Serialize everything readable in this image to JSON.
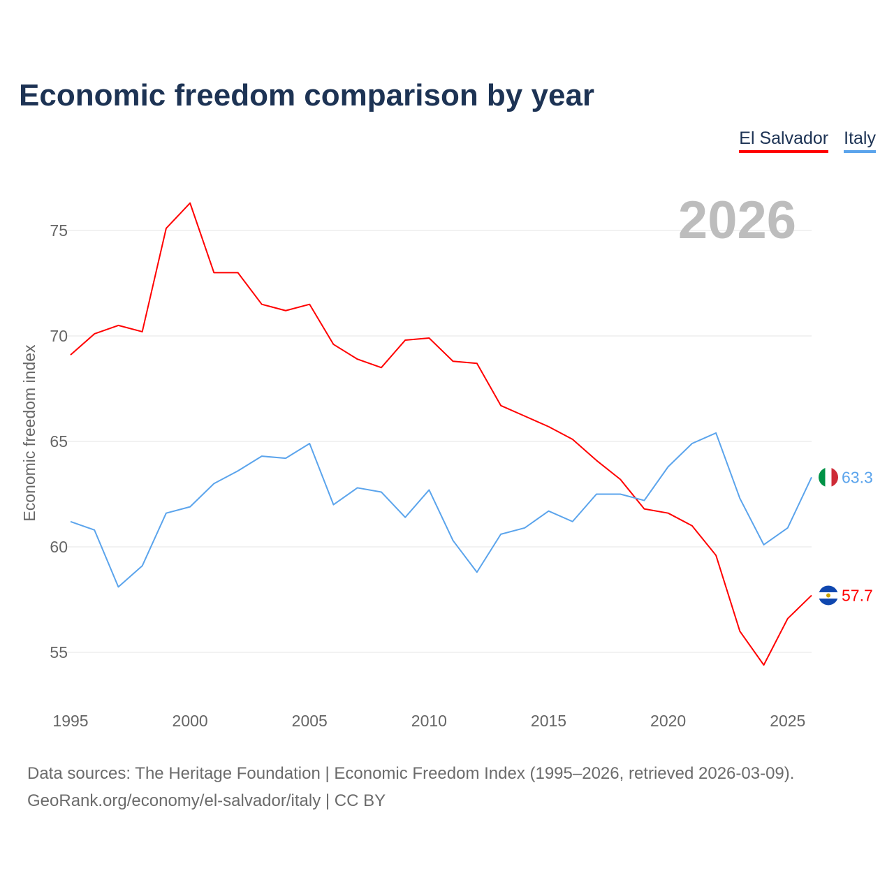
{
  "chart_data": {
    "type": "line",
    "title": "Economic freedom comparison by year",
    "xlabel": "",
    "ylabel": "Economic freedom index",
    "xlim": [
      1995,
      2026
    ],
    "ylim": [
      52.5,
      77
    ],
    "x_ticks": [
      1995,
      2000,
      2005,
      2010,
      2015,
      2020,
      2025
    ],
    "y_ticks": [
      55,
      60,
      65,
      70,
      75
    ],
    "grid": true,
    "legend_position": "top-right",
    "current_year_label": "2026",
    "x": [
      1995,
      1996,
      1997,
      1998,
      1999,
      2000,
      2001,
      2002,
      2003,
      2004,
      2005,
      2006,
      2007,
      2008,
      2009,
      2010,
      2011,
      2012,
      2013,
      2014,
      2015,
      2016,
      2017,
      2018,
      2019,
      2020,
      2021,
      2022,
      2023,
      2024,
      2025,
      2026
    ],
    "series": [
      {
        "name": "El Salvador",
        "color": "#ff0000",
        "end_label": "57.7",
        "flag": "el-salvador",
        "values": [
          69.1,
          70.1,
          70.5,
          70.2,
          75.1,
          76.3,
          73.0,
          73.0,
          71.5,
          71.2,
          71.5,
          69.6,
          68.9,
          68.5,
          69.8,
          69.9,
          68.8,
          68.7,
          66.7,
          66.2,
          65.7,
          65.1,
          64.1,
          63.2,
          61.8,
          61.6,
          61.0,
          59.6,
          56.0,
          54.4,
          56.6,
          57.7
        ]
      },
      {
        "name": "Italy",
        "color": "#5ba4ec",
        "end_label": "63.3",
        "flag": "italy",
        "values": [
          61.2,
          60.8,
          58.1,
          59.1,
          61.6,
          61.9,
          63.0,
          63.6,
          64.3,
          64.2,
          64.9,
          62.0,
          62.8,
          62.6,
          61.4,
          62.7,
          60.3,
          58.8,
          60.6,
          60.9,
          61.7,
          61.2,
          62.5,
          62.5,
          62.2,
          63.8,
          64.9,
          65.4,
          62.3,
          60.1,
          60.9,
          63.3
        ]
      }
    ]
  },
  "footer": {
    "line1": "Data sources: The Heritage Foundation | Economic Freedom Index (1995–2026, retrieved 2026-03-09).",
    "line2": "GeoRank.org/economy/el-salvador/italy | CC BY"
  }
}
